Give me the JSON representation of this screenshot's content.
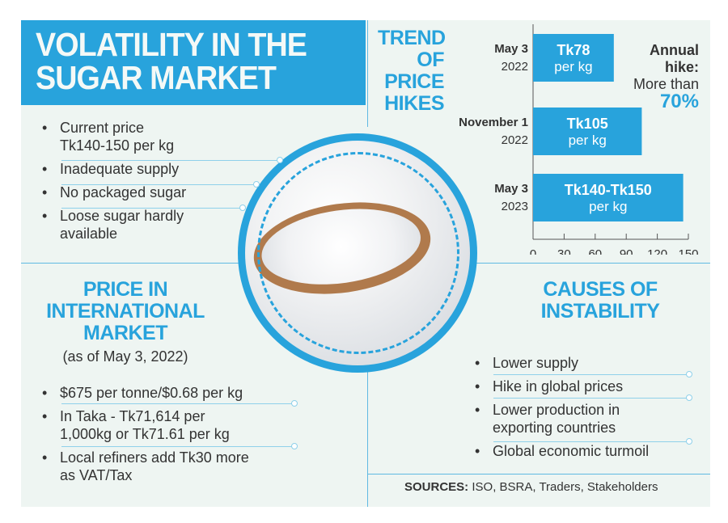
{
  "title": {
    "line1": "VOLATILITY IN THE",
    "line2": "SUGAR MARKET"
  },
  "market_points": [
    "Current price",
    "Tk140-150 per kg",
    "Inadequate supply",
    "No packaged sugar",
    "Loose sugar hardly",
    "available"
  ],
  "trend": {
    "title": [
      "TREND",
      "OF",
      "PRICE",
      "HIKES"
    ],
    "annual_label": "Annual",
    "annual_label2": "hike:",
    "annual_text": "More than",
    "annual_value": "70%"
  },
  "international": {
    "title": [
      "PRICE IN",
      "INTERNATIONAL",
      "MARKET"
    ],
    "subtitle": "(as of May 3, 2022)",
    "points": [
      "$675 per tonne/$0.68 per kg",
      "In Taka - Tk71,614 per",
      "1,000kg or Tk71.61 per kg",
      "Local refiners add Tk30 more",
      "as VAT/Tax"
    ]
  },
  "causes": {
    "title": [
      "CAUSES OF",
      "INSTABILITY"
    ],
    "points": [
      "Lower supply",
      "Hike in global prices",
      "Lower production in",
      "exporting countries",
      "Global economic turmoil"
    ]
  },
  "sources": {
    "label": "SOURCES:",
    "text": " ISO, BSRA, Traders, Stakeholders"
  },
  "colors": {
    "accent": "#28a3dc",
    "background": "#eef5f2"
  },
  "chart_data": {
    "type": "bar",
    "orientation": "horizontal",
    "categories": [
      [
        "May 3",
        "2022"
      ],
      [
        "November 1",
        "2022"
      ],
      [
        "May 3",
        "2023"
      ]
    ],
    "values": [
      78,
      105,
      145
    ],
    "data_labels": [
      [
        "Tk78",
        "per kg"
      ],
      [
        "Tk105",
        "per kg"
      ],
      [
        "Tk140-Tk150",
        "per kg"
      ]
    ],
    "xlim": [
      0,
      150
    ],
    "xticks": [
      0,
      30,
      60,
      90,
      120,
      150
    ],
    "grid": false
  }
}
